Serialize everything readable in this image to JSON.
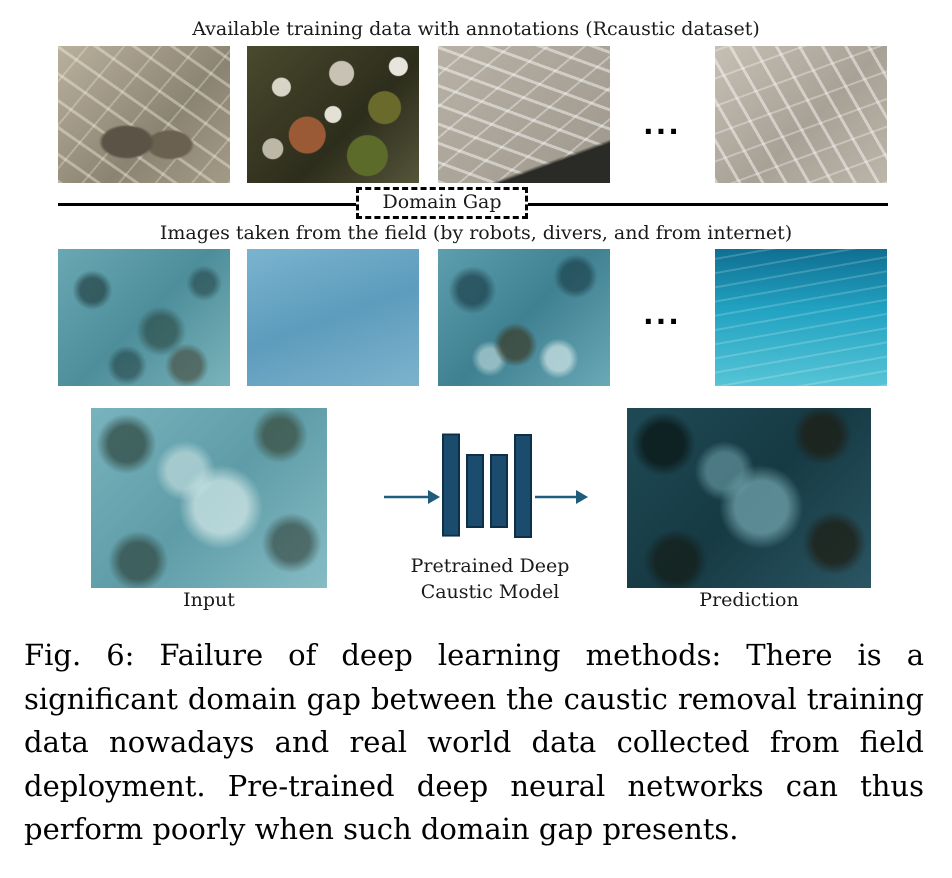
{
  "figure": {
    "top_title": "Available training data with annotations (Rcaustic dataset)",
    "domain_gap_label": "Domain Gap",
    "field_title": "Images taken from the field (by robots, divers, and from internet)",
    "ellipsis": "...",
    "input_label": "Input",
    "model_label_line1": "Pretrained Deep",
    "model_label_line2": "Caustic Model",
    "prediction_label": "Prediction",
    "colors": {
      "network_block": "#1b4c6e",
      "arrow": "#1f5b7a"
    }
  },
  "caption": {
    "text": "Fig. 6: Failure of deep learning methods: There is a significant domain gap between the caustic removal training data nowadays and real world data collected from field deployment. Pre-trained deep neural networks can thus perform poorly when such domain gap presents."
  }
}
